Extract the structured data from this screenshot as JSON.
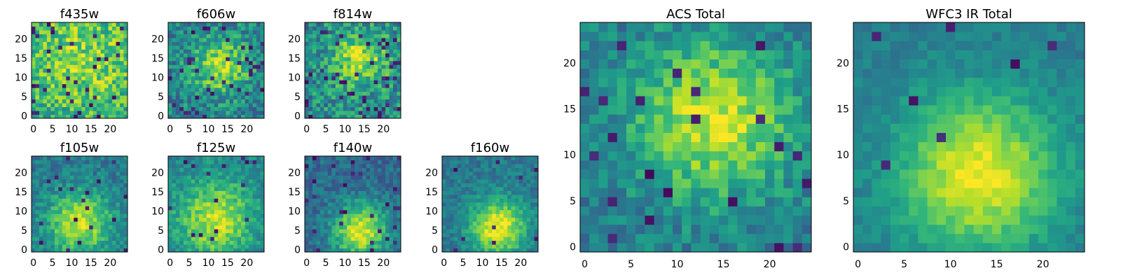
{
  "figure": {
    "background": "#ffffff"
  },
  "colormap": {
    "name": "viridis",
    "stops": [
      "#440154",
      "#482878",
      "#3e4a89",
      "#31688e",
      "#26828e",
      "#1f9e89",
      "#35b779",
      "#6ece58",
      "#b5de2b",
      "#fde725"
    ]
  },
  "chart_data": [
    {
      "type": "heatmap",
      "title": "f435w",
      "grid_size": 25,
      "xticks": [
        "0",
        "5",
        "10",
        "15",
        "20"
      ],
      "yticks": [
        "0",
        "5",
        "10",
        "15",
        "20"
      ],
      "xlim": [
        0,
        24
      ],
      "ylim": [
        0,
        24
      ],
      "grid": false,
      "colorbar": false,
      "blob_center": [
        13,
        15
      ],
      "blob_sigma": 9,
      "base_level": 0.62,
      "blob_amplitude": 0.2,
      "noise": 0.22,
      "dark_pixel_fraction": 0.05,
      "seed": 11
    },
    {
      "type": "heatmap",
      "title": "f606w",
      "grid_size": 25,
      "xticks": [
        "0",
        "5",
        "10",
        "15",
        "20"
      ],
      "yticks": [
        "0",
        "5",
        "10",
        "15",
        "20"
      ],
      "xlim": [
        0,
        24
      ],
      "ylim": [
        0,
        24
      ],
      "grid": false,
      "colorbar": false,
      "blob_center": [
        13,
        13
      ],
      "blob_sigma": 5,
      "base_level": 0.45,
      "blob_amplitude": 0.42,
      "noise": 0.2,
      "dark_pixel_fraction": 0.05,
      "seed": 23
    },
    {
      "type": "heatmap",
      "title": "f814w",
      "grid_size": 25,
      "xticks": [
        "0",
        "5",
        "10",
        "15",
        "20"
      ],
      "yticks": [
        "0",
        "5",
        "10",
        "15",
        "20"
      ],
      "xlim": [
        0,
        24
      ],
      "ylim": [
        0,
        24
      ],
      "grid": false,
      "colorbar": false,
      "blob_center": [
        14,
        15
      ],
      "blob_sigma": 5,
      "base_level": 0.48,
      "blob_amplitude": 0.4,
      "noise": 0.22,
      "dark_pixel_fraction": 0.07,
      "seed": 37
    },
    {
      "type": "heatmap",
      "title": "f105w",
      "grid_size": 25,
      "xticks": [
        "0",
        "5",
        "10",
        "15",
        "20"
      ],
      "yticks": [
        "0",
        "5",
        "10",
        "15",
        "20"
      ],
      "xlim": [
        0,
        24
      ],
      "ylim": [
        0,
        24
      ],
      "grid": false,
      "colorbar": false,
      "blob_center": [
        12,
        7
      ],
      "blob_sigma": 6,
      "base_level": 0.4,
      "blob_amplitude": 0.5,
      "noise": 0.13,
      "dark_pixel_fraction": 0.03,
      "seed": 41
    },
    {
      "type": "heatmap",
      "title": "f125w",
      "grid_size": 25,
      "xticks": [
        "0",
        "5",
        "10",
        "15",
        "20"
      ],
      "yticks": [
        "0",
        "5",
        "10",
        "15",
        "20"
      ],
      "xlim": [
        0,
        24
      ],
      "ylim": [
        0,
        24
      ],
      "grid": false,
      "colorbar": false,
      "blob_center": [
        12,
        8
      ],
      "blob_sigma": 7,
      "base_level": 0.45,
      "blob_amplitude": 0.45,
      "noise": 0.13,
      "dark_pixel_fraction": 0.03,
      "seed": 53
    },
    {
      "type": "heatmap",
      "title": "f140w",
      "grid_size": 25,
      "xticks": [
        "0",
        "5",
        "10",
        "15",
        "20"
      ],
      "yticks": [
        "0",
        "5",
        "10",
        "15",
        "20"
      ],
      "xlim": [
        0,
        24
      ],
      "ylim": [
        0,
        24
      ],
      "grid": false,
      "colorbar": false,
      "blob_center": [
        14,
        5
      ],
      "blob_sigma": 5,
      "base_level": 0.35,
      "blob_amplitude": 0.6,
      "noise": 0.12,
      "dark_pixel_fraction": 0.04,
      "seed": 67
    },
    {
      "type": "heatmap",
      "title": "f160w",
      "grid_size": 25,
      "xticks": [
        "0",
        "5",
        "10",
        "15",
        "20"
      ],
      "yticks": [
        "0",
        "5",
        "10",
        "15",
        "20"
      ],
      "xlim": [
        0,
        24
      ],
      "ylim": [
        0,
        24
      ],
      "grid": false,
      "colorbar": false,
      "blob_center": [
        14,
        6
      ],
      "blob_sigma": 5,
      "base_level": 0.4,
      "blob_amplitude": 0.6,
      "noise": 0.11,
      "dark_pixel_fraction": 0.02,
      "seed": 79
    },
    {
      "type": "heatmap",
      "title": "ACS Total",
      "grid_size": 25,
      "xticks": [
        "0",
        "5",
        "10",
        "15",
        "20"
      ],
      "yticks": [
        "0",
        "5",
        "10",
        "15",
        "20"
      ],
      "xlim": [
        0,
        24
      ],
      "ylim": [
        0,
        24
      ],
      "grid": false,
      "colorbar": false,
      "blob_center": [
        14,
        14
      ],
      "blob_sigma": 6,
      "base_level": 0.42,
      "blob_amplitude": 0.5,
      "noise": 0.14,
      "dark_pixel_fraction": 0.04,
      "seed": 83
    },
    {
      "type": "heatmap",
      "title": "WFC3 IR Total",
      "grid_size": 25,
      "xticks": [
        "0",
        "5",
        "10",
        "15",
        "20"
      ],
      "yticks": [
        "0",
        "5",
        "10",
        "15",
        "20"
      ],
      "xlim": [
        0,
        24
      ],
      "ylim": [
        0,
        24
      ],
      "grid": false,
      "colorbar": false,
      "blob_center": [
        13,
        8
      ],
      "blob_sigma": 6,
      "base_level": 0.42,
      "blob_amplitude": 0.55,
      "noise": 0.07,
      "dark_pixel_fraction": 0.01,
      "seed": 97
    }
  ]
}
